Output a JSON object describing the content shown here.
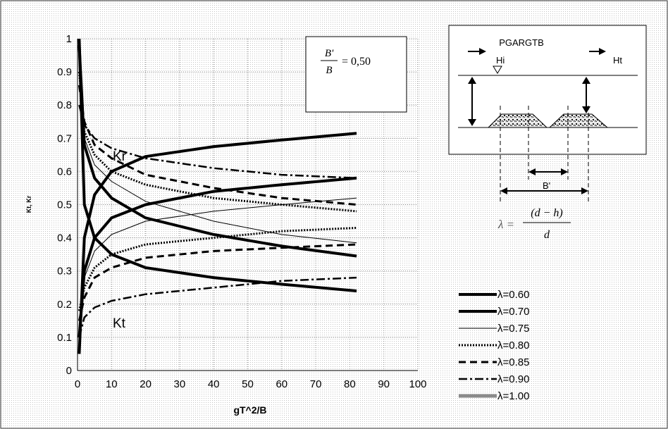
{
  "chart_data": {
    "type": "line",
    "title": "",
    "xlabel": "gT^2/B",
    "ylabel": "Kt, Kr",
    "xlim": [
      0,
      100
    ],
    "ylim": [
      0,
      1
    ],
    "xticks": [
      "0",
      "10",
      "20",
      "30",
      "40",
      "50",
      "60",
      "70",
      "80",
      "90",
      "100"
    ],
    "yticks": [
      "0",
      "0.1",
      "0.2",
      "0.3",
      "0.4",
      "0.5",
      "0.6",
      "0.7",
      "0.8",
      "0.9",
      "1"
    ],
    "grid": true,
    "legend_position": "bottom-right",
    "annotations": {
      "ratio_box": {
        "num": "B'",
        "den": "B",
        "value": "= 0,50"
      },
      "kr_label": "Kr",
      "kt_label": "Kt"
    },
    "series": [
      {
        "name": "λ=0.60",
        "kr": [
          [
            0.5,
            0.05
          ],
          [
            2,
            0.4
          ],
          [
            5,
            0.53
          ],
          [
            10,
            0.6
          ],
          [
            20,
            0.645
          ],
          [
            40,
            0.675
          ],
          [
            60,
            0.695
          ],
          [
            82,
            0.715
          ]
        ],
        "kt": [
          [
            0.5,
            1.0
          ],
          [
            2,
            0.5
          ],
          [
            5,
            0.4
          ],
          [
            10,
            0.35
          ],
          [
            20,
            0.31
          ],
          [
            40,
            0.28
          ],
          [
            60,
            0.26
          ],
          [
            82,
            0.24
          ]
        ]
      },
      {
        "name": "λ=0.70",
        "kr": [
          [
            0.5,
            0.1
          ],
          [
            2,
            0.3
          ],
          [
            5,
            0.4
          ],
          [
            10,
            0.46
          ],
          [
            20,
            0.5
          ],
          [
            40,
            0.54
          ],
          [
            60,
            0.56
          ],
          [
            82,
            0.58
          ]
        ],
        "kt": [
          [
            0.5,
            0.98
          ],
          [
            2,
            0.68
          ],
          [
            5,
            0.58
          ],
          [
            10,
            0.52
          ],
          [
            20,
            0.46
          ],
          [
            40,
            0.41
          ],
          [
            60,
            0.375
          ],
          [
            82,
            0.345
          ]
        ]
      },
      {
        "name": "λ=0.75",
        "kr": [
          [
            0.5,
            0.15
          ],
          [
            2,
            0.28
          ],
          [
            5,
            0.36
          ],
          [
            10,
            0.41
          ],
          [
            20,
            0.45
          ],
          [
            40,
            0.48
          ],
          [
            60,
            0.5
          ],
          [
            82,
            0.52
          ]
        ],
        "kt": [
          [
            0.5,
            0.95
          ],
          [
            2,
            0.7
          ],
          [
            5,
            0.62
          ],
          [
            10,
            0.57
          ],
          [
            20,
            0.51
          ],
          [
            40,
            0.45
          ],
          [
            60,
            0.41
          ],
          [
            82,
            0.385
          ]
        ]
      },
      {
        "name": "λ=0.80",
        "kr": [
          [
            0.5,
            0.18
          ],
          [
            2,
            0.25
          ],
          [
            5,
            0.31
          ],
          [
            10,
            0.35
          ],
          [
            20,
            0.38
          ],
          [
            40,
            0.4
          ],
          [
            60,
            0.42
          ],
          [
            82,
            0.43
          ]
        ],
        "kt": [
          [
            0.5,
            0.9
          ],
          [
            2,
            0.72
          ],
          [
            5,
            0.65
          ],
          [
            10,
            0.6
          ],
          [
            20,
            0.56
          ],
          [
            40,
            0.52
          ],
          [
            60,
            0.5
          ],
          [
            82,
            0.48
          ]
        ]
      },
      {
        "name": "λ=0.85",
        "kr": [
          [
            0.5,
            0.15
          ],
          [
            2,
            0.22
          ],
          [
            5,
            0.28
          ],
          [
            10,
            0.31
          ],
          [
            20,
            0.34
          ],
          [
            40,
            0.36
          ],
          [
            60,
            0.37
          ],
          [
            82,
            0.38
          ]
        ],
        "kt": [
          [
            0.5,
            0.86
          ],
          [
            2,
            0.75
          ],
          [
            5,
            0.68
          ],
          [
            10,
            0.64
          ],
          [
            20,
            0.59
          ],
          [
            40,
            0.55
          ],
          [
            60,
            0.52
          ],
          [
            82,
            0.5
          ]
        ]
      },
      {
        "name": "λ=0.90",
        "kr": [
          [
            0.5,
            0.1
          ],
          [
            2,
            0.16
          ],
          [
            5,
            0.19
          ],
          [
            10,
            0.21
          ],
          [
            20,
            0.23
          ],
          [
            40,
            0.25
          ],
          [
            60,
            0.27
          ],
          [
            82,
            0.28
          ]
        ],
        "kt": [
          [
            0.5,
            0.8
          ],
          [
            2,
            0.74
          ],
          [
            5,
            0.7
          ],
          [
            10,
            0.67
          ],
          [
            20,
            0.64
          ],
          [
            40,
            0.61
          ],
          [
            60,
            0.59
          ],
          [
            82,
            0.58
          ]
        ]
      },
      {
        "name": "λ=1.00",
        "kr": [],
        "kt": []
      }
    ]
  },
  "diagram": {
    "title": "PGARGTB",
    "hi_label": "Hi",
    "ht_label": "Ht",
    "b_prime_label": "B'",
    "lambda_lhs": "λ =",
    "lambda_num": "(d − h)",
    "lambda_den": "d"
  }
}
